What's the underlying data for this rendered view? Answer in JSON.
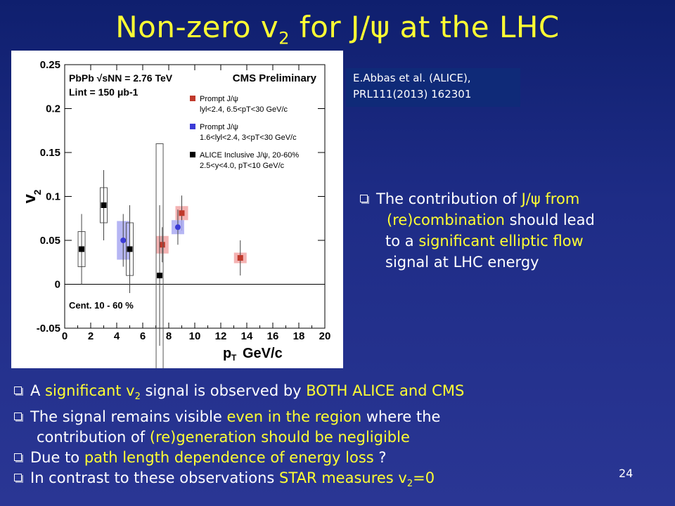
{
  "slide": {
    "title_pre": "Non-zero v",
    "title_sub": "2",
    "title_post": " for J/ψ at the LHC",
    "page_number": "24"
  },
  "reference": {
    "line1": "E.Abbas et al. (ALICE),",
    "line2": "PRL111(2013) 162301"
  },
  "right_bullet": {
    "t1": "The contribution of ",
    "h1": "J/ψ from",
    "h2": "(re)combination",
    "t2": " should lead",
    "t3": "to a ",
    "h3": "significant elliptic flow",
    "t4": "signal at LHC energy"
  },
  "bottom_bullets": {
    "b1_t1": "A ",
    "b1_h1": "significant v",
    "b1_h1_sub": "2",
    "b1_t2": " signal is observed by ",
    "b1_h2": "BOTH ALICE and CMS",
    "b2_t1": "The signal remains visible ",
    "b2_h1": "even in the region",
    "b2_t2": " where the",
    "b2_t3": "contribution of ",
    "b2_h2": "(re)generation should be negligible",
    "b3_t1": "Due to ",
    "b3_h1": "path length dependence of energy loss",
    "b3_t2": " ?",
    "b4_t1": "In contrast to these observations ",
    "b4_h1": "STAR measures v",
    "b4_h1_sub": "2",
    "b4_h2": "=0"
  },
  "chart_data": {
    "type": "scatter",
    "xlabel": "p_T GeV/c",
    "ylabel": "v2",
    "xlim": [
      0,
      20
    ],
    "ylim": [
      -0.05,
      0.25
    ],
    "x_ticks": [
      0,
      2,
      4,
      6,
      8,
      10,
      12,
      14,
      16,
      18,
      20
    ],
    "y_ticks": [
      -0.05,
      0,
      0.05,
      0.1,
      0.15,
      0.2,
      0.25
    ],
    "y_tick_labels": [
      "-0.05",
      "0",
      "0.05",
      "0.1",
      "0.15",
      "0.2",
      "0.25"
    ],
    "header_left": "PbPb  √sNN = 2.76 TeV",
    "header_lumi": "Lint = 150 μb-1",
    "header_right": "CMS Preliminary",
    "centrality": "Cent. 10 - 60 %",
    "series": [
      {
        "name": "Prompt J/ψ",
        "desc": "lyl<2.4, 6.5<pT<30 GeV/c",
        "color": "#c0392b",
        "box_color": "#f2a6a6",
        "points": [
          {
            "x": 7.5,
            "y": 0.045,
            "err": 0.02,
            "syst": 0.01
          },
          {
            "x": 9.0,
            "y": 0.081,
            "err": 0.02,
            "syst": 0.008
          },
          {
            "x": 13.5,
            "y": 0.03,
            "err": 0.02,
            "syst": 0.006
          }
        ]
      },
      {
        "name": "Prompt J/ψ",
        "desc": "1.6<lyl<2.4, 3<pT<30 GeV/c",
        "color": "#3b3bd6",
        "box_color": "#a9a9f2",
        "points": [
          {
            "x": 4.5,
            "y": 0.05,
            "err": 0.03,
            "syst": 0.022
          },
          {
            "x": 8.7,
            "y": 0.065,
            "err": 0.02,
            "syst": 0.008
          }
        ]
      },
      {
        "name": "ALICE Inclusive J/ψ, 20-60%",
        "desc": "2.5<y<4.0, pT<10 GeV/c",
        "color": "#000000",
        "box_color": "none",
        "points": [
          {
            "x": 1.3,
            "y": 0.04,
            "err": 0.04,
            "syst": 0.02
          },
          {
            "x": 3.0,
            "y": 0.09,
            "err": 0.04,
            "syst": 0.02
          },
          {
            "x": 5.0,
            "y": 0.04,
            "err": 0.05,
            "syst": 0.03
          },
          {
            "x": 7.3,
            "y": 0.01,
            "err": 0.08,
            "syst": 0.15
          }
        ]
      }
    ]
  }
}
